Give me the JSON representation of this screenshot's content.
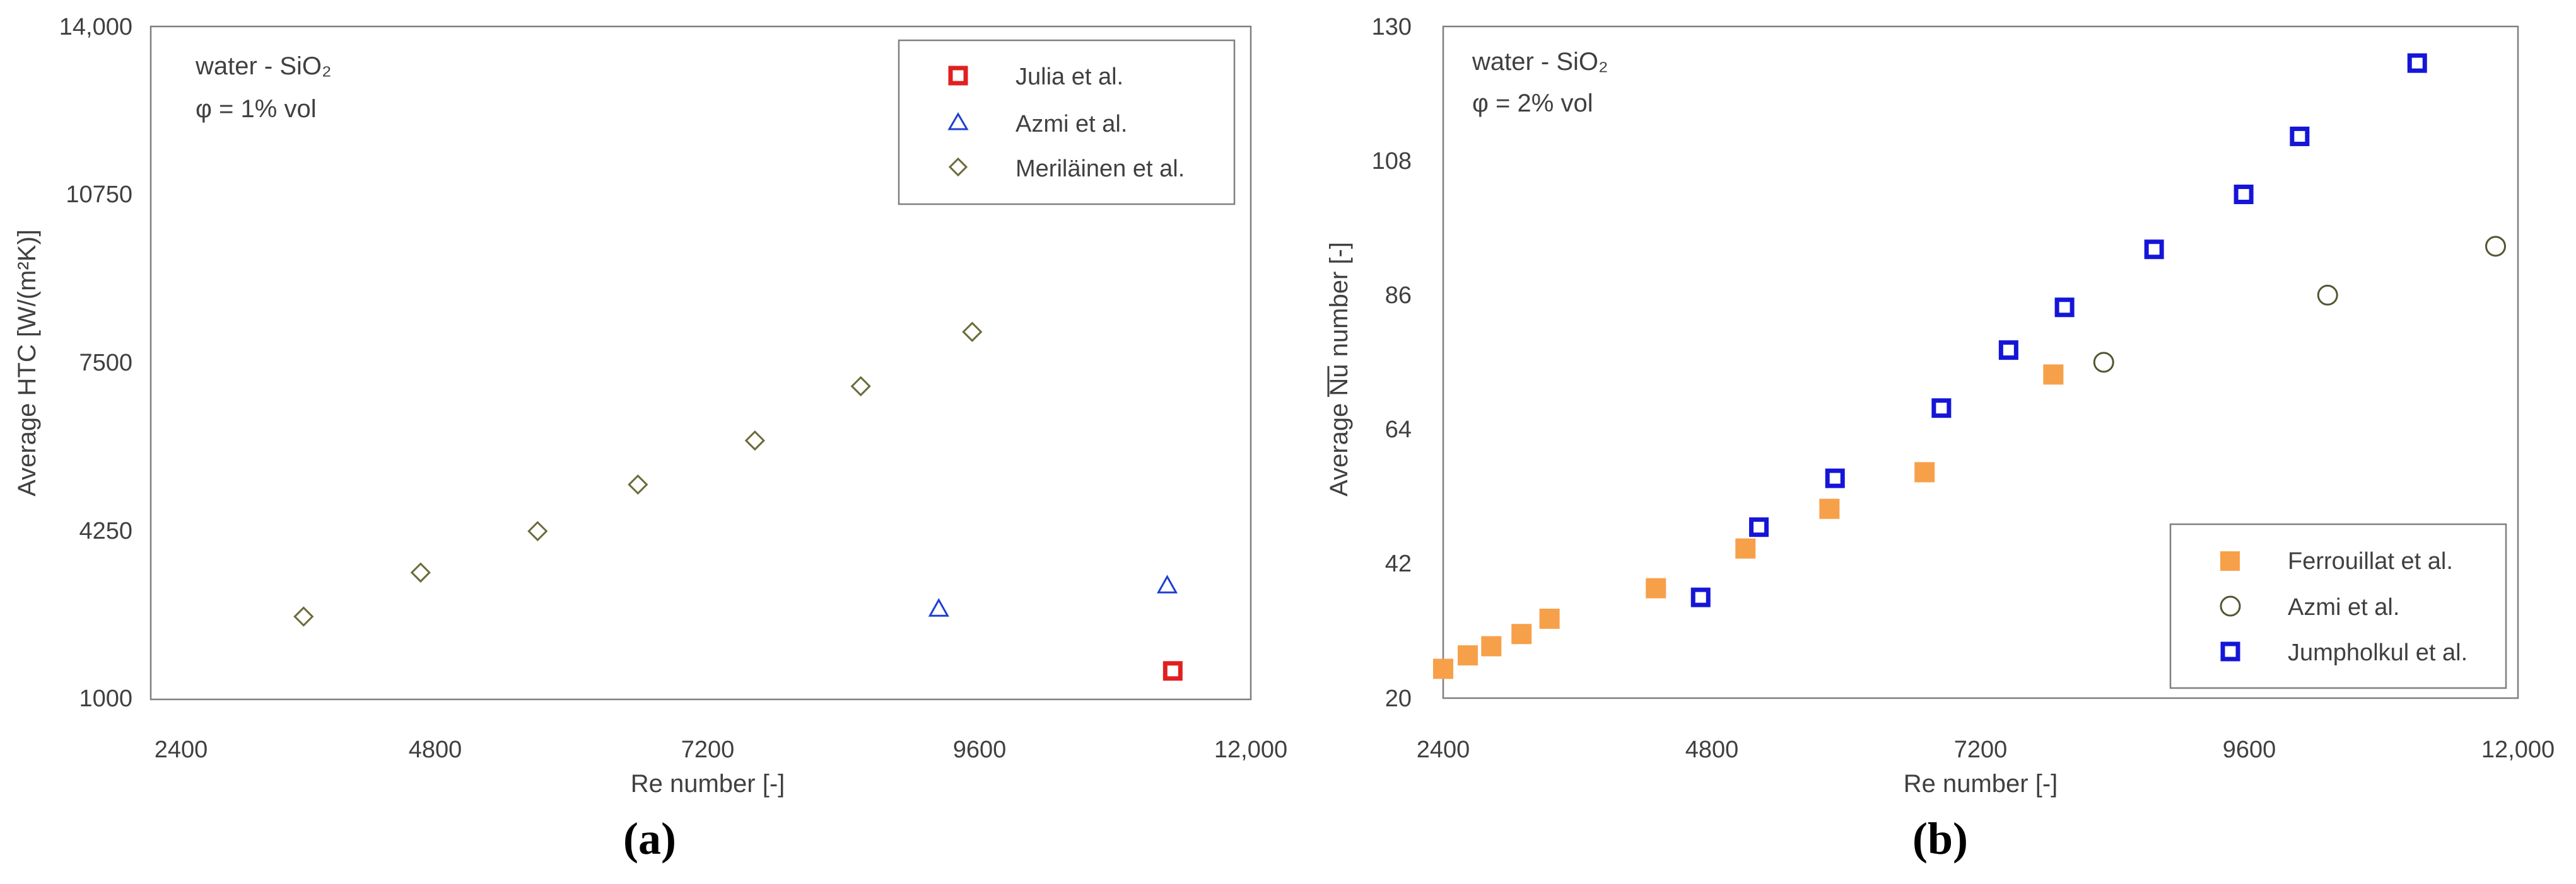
{
  "chart_data": [
    {
      "type": "scatter",
      "panel_label": "(a)",
      "xlabel": "Re number [-]",
      "ylabel": "Average HTC [W/(m²K)]",
      "xlim": [
        2400,
        12000
      ],
      "ylim": [
        1000,
        14000
      ],
      "xticks": [
        "2400",
        "4800",
        "7200",
        "9600",
        "12,000"
      ],
      "yticks": [
        "1000",
        "4250",
        "7500",
        "10750",
        "14,000"
      ],
      "annotation_line1": "water - SiO₂",
      "annotation_line2": "φ = 1% vol",
      "legend_position": "top-right",
      "grid": false,
      "series": [
        {
          "name": "Julia et al.",
          "marker": "square-open",
          "color": "#e02020",
          "points": [
            [
              11300,
              1550
            ]
          ]
        },
        {
          "name": "Azmi et al.",
          "marker": "triangle-open",
          "color": "#1f3fd0",
          "points": [
            [
              9200,
              2750
            ],
            [
              11250,
              3200
            ]
          ]
        },
        {
          "name": "Meriläinen et al.",
          "marker": "diamond-open",
          "color": "#6b6b3a",
          "points": [
            [
              3500,
              2600
            ],
            [
              4550,
              3450
            ],
            [
              5600,
              4250
            ],
            [
              6500,
              5150
            ],
            [
              7550,
              6000
            ],
            [
              8500,
              7050
            ],
            [
              9500,
              8100
            ]
          ]
        }
      ]
    },
    {
      "type": "scatter",
      "panel_label": "(b)",
      "xlabel": "Re number [-]",
      "ylabel": "Average Nu number [-]",
      "xlim": [
        2400,
        12000
      ],
      "ylim": [
        20,
        130
      ],
      "xticks": [
        "2400",
        "4800",
        "7200",
        "9600",
        "12,000"
      ],
      "yticks": [
        "20",
        "42",
        "64",
        "86",
        "108",
        "130"
      ],
      "annotation_line1": "water - SiO₂",
      "annotation_line2": "φ = 2% vol",
      "legend_position": "bottom-right",
      "grid": false,
      "series": [
        {
          "name": "Ferrouillat et al.",
          "marker": "square-filled",
          "color": "#f7a04a",
          "points": [
            [
              2400,
              24.8
            ],
            [
              2620,
              27
            ],
            [
              2830,
              28.5
            ],
            [
              3100,
              30.5
            ],
            [
              3350,
              33
            ],
            [
              4300,
              38
            ],
            [
              5100,
              44.5
            ],
            [
              5850,
              51
            ],
            [
              6700,
              57
            ],
            [
              7850,
              73
            ]
          ]
        },
        {
          "name": "Azmi et al.",
          "marker": "circle-open",
          "color": "#555533",
          "points": [
            [
              8300,
              75
            ],
            [
              10300,
              86
            ],
            [
              11800,
              94
            ]
          ]
        },
        {
          "name": "Jumpholkul et al.",
          "marker": "square-open",
          "color": "#1515d8",
          "points": [
            [
              4700,
              36.5
            ],
            [
              5220,
              48
            ],
            [
              5900,
              56
            ],
            [
              6850,
              67.5
            ],
            [
              7450,
              77
            ],
            [
              7950,
              84
            ],
            [
              8750,
              93.5
            ],
            [
              9550,
              102.5
            ],
            [
              10050,
              112
            ],
            [
              11100,
              124
            ]
          ]
        }
      ]
    }
  ]
}
